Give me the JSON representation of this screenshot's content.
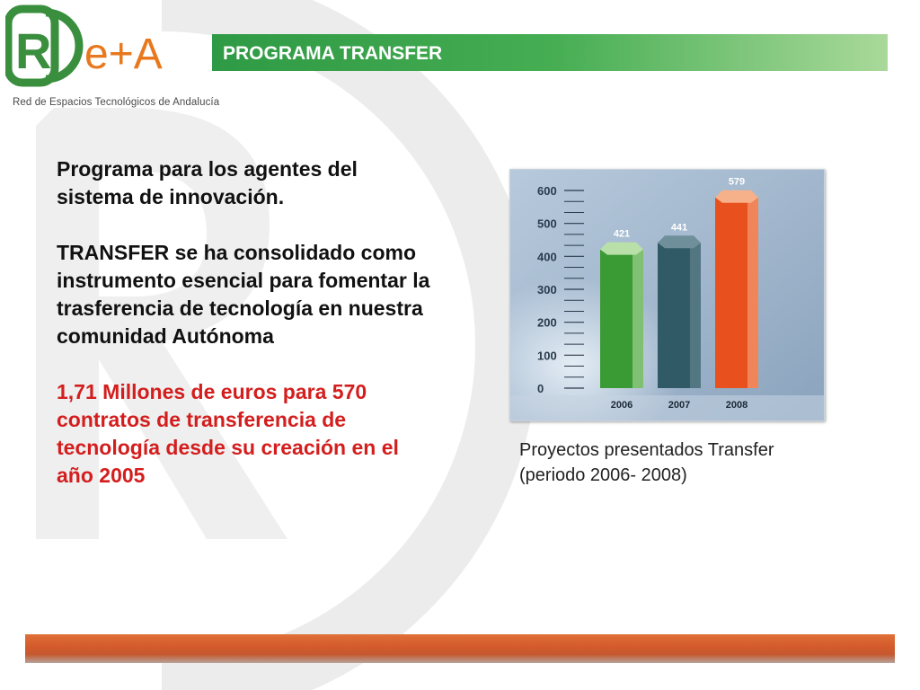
{
  "logo": {
    "text_r": "R",
    "text_e": "e+A",
    "tagline": "Red de Espacios Tecnológicos de Andalucía"
  },
  "header": {
    "title": "PROGRAMA TRANSFER"
  },
  "body": {
    "paragraph1": "Programa para los agentes del sistema de innovación.",
    "paragraph2": "TRANSFER se ha consolidado como instrumento esencial para fomentar la trasferencia de tecnología en nuestra comunidad Autónoma",
    "highlight": "1,71 Millones de euros para 570 contratos de transferencia de tecnología desde su creación en el año 2005"
  },
  "chart_data": {
    "type": "bar",
    "categories": [
      "2006",
      "2007",
      "2008"
    ],
    "values": [
      421,
      441,
      579
    ],
    "data_labels": [
      "421",
      "441",
      "579"
    ],
    "ylim": [
      0,
      600
    ],
    "yticks": [
      "0",
      "100",
      "200",
      "300",
      "400",
      "500",
      "600"
    ],
    "bar_colors": [
      "#3a9a34",
      "#2f5a66",
      "#e8501e"
    ],
    "bar_top_colors": [
      "#b8e0a8",
      "#6f8f9a",
      "#f6b08a"
    ],
    "title": "",
    "xlabel": "",
    "ylabel": ""
  },
  "caption": {
    "line1": "Proyectos presentados Transfer",
    "line2": "(periodo 2006- 2008)"
  },
  "colors": {
    "header_green": "#2f9a45",
    "highlight_red": "#d41e1e",
    "footer_orange": "#d35a2c"
  }
}
